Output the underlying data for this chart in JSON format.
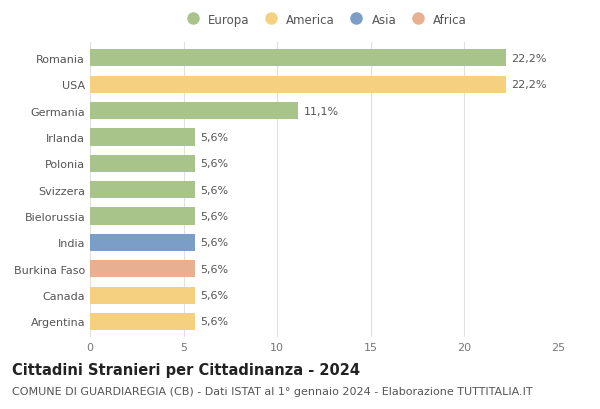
{
  "title": "Cittadini Stranieri per Cittadinanza - 2024",
  "subtitle": "COMUNE DI GUARDIAREGIA (CB) - Dati ISTAT al 1° gennaio 2024 - Elaborazione TUTTITALIA.IT",
  "countries": [
    "Romania",
    "USA",
    "Germania",
    "Irlanda",
    "Polonia",
    "Svizzera",
    "Bielorussia",
    "India",
    "Burkina Faso",
    "Canada",
    "Argentina"
  ],
  "values": [
    22.2,
    22.2,
    11.1,
    5.6,
    5.6,
    5.6,
    5.6,
    5.6,
    5.6,
    5.6,
    5.6
  ],
  "labels": [
    "22,2%",
    "22,2%",
    "11,1%",
    "5,6%",
    "5,6%",
    "5,6%",
    "5,6%",
    "5,6%",
    "5,6%",
    "5,6%",
    "5,6%"
  ],
  "colors": [
    "#a8c48a",
    "#f5d080",
    "#a8c48a",
    "#a8c48a",
    "#a8c48a",
    "#a8c48a",
    "#a8c48a",
    "#7b9ec9",
    "#e8b090",
    "#f5d080",
    "#f5d080"
  ],
  "legend_labels": [
    "Europa",
    "America",
    "Asia",
    "Africa"
  ],
  "legend_colors": [
    "#a8c48a",
    "#f5d080",
    "#7b9ec9",
    "#e8b090"
  ],
  "xlim": [
    0,
    25
  ],
  "xticks": [
    0,
    5,
    10,
    15,
    20,
    25
  ],
  "background_color": "#ffffff",
  "grid_color": "#e0e0e0",
  "bar_height": 0.65,
  "title_fontsize": 10.5,
  "subtitle_fontsize": 8,
  "label_fontsize": 8,
  "tick_fontsize": 8,
  "legend_fontsize": 8.5
}
